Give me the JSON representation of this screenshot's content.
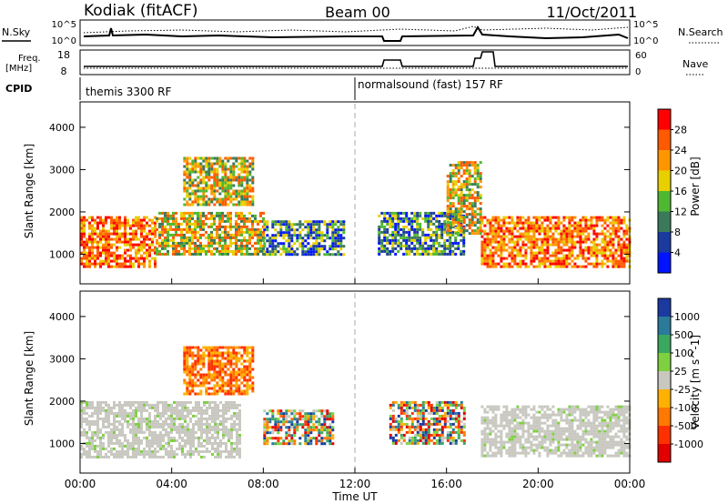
{
  "header": {
    "station": "Kodiak (fitACF)",
    "beam": "Beam 00",
    "date": "11/Oct/2011"
  },
  "panels": {
    "sky_noise": {
      "left_label": "N.Sky",
      "right_label": "N.Search",
      "left_ticks": [
        "10^5",
        "10^0"
      ],
      "right_ticks": [
        "10^5",
        "10^0"
      ]
    },
    "freq": {
      "left_label": "Freq.",
      "left_unit": "[MHz]",
      "left_ticks": [
        "18",
        "8"
      ],
      "right_label": "Nave",
      "right_ticks": [
        "60",
        "0"
      ]
    },
    "cpid": {
      "label": "CPID",
      "segments": [
        {
          "label": "themis 3300 RF",
          "start_hour": 0,
          "end_hour": 12
        },
        {
          "label": "normalsound (fast) 157 RF",
          "start_hour": 12,
          "end_hour": 24
        }
      ]
    }
  },
  "chart_data": [
    {
      "type": "heatmap",
      "name": "power",
      "ylabel": "Slant Range [km]",
      "xlabel": "",
      "xlim": [
        0,
        24
      ],
      "ylim": [
        300,
        4600
      ],
      "y_ticks": [
        1000,
        2000,
        3000,
        4000
      ],
      "colorbar": {
        "label": "Power [dB]",
        "ticks": [
          "28",
          "24",
          "20",
          "16",
          "12",
          "8",
          "4"
        ],
        "colors": [
          "#ff0000",
          "#ff5a00",
          "#ff9600",
          "#e8d000",
          "#4fb830",
          "#3a7a5a",
          "#1a3aa0",
          "#0014ff"
        ]
      },
      "regions": [
        {
          "x": [
            0.0,
            3.3
          ],
          "y": [
            700,
            1900
          ],
          "level": "strong"
        },
        {
          "x": [
            3.3,
            8.0
          ],
          "y": [
            1000,
            2000
          ],
          "level": "medium"
        },
        {
          "x": [
            4.5,
            7.5
          ],
          "y": [
            2200,
            3300
          ],
          "level": "medium"
        },
        {
          "x": [
            8.0,
            11.5
          ],
          "y": [
            1000,
            1800
          ],
          "level": "weak"
        },
        {
          "x": [
            13.0,
            16.8
          ],
          "y": [
            1000,
            2000
          ],
          "level": "weak"
        },
        {
          "x": [
            16.0,
            17.5
          ],
          "y": [
            1500,
            3200
          ],
          "level": "medium"
        },
        {
          "x": [
            17.5,
            24.0
          ],
          "y": [
            700,
            1900
          ],
          "level": "strong"
        }
      ]
    },
    {
      "type": "heatmap",
      "name": "velocity",
      "ylabel": "Slant Range [km]",
      "xlabel": "Time UT",
      "xlim": [
        0,
        24
      ],
      "ylim": [
        300,
        4600
      ],
      "y_ticks": [
        1000,
        2000,
        3000,
        4000
      ],
      "x_ticks": [
        "00:00",
        "04:00",
        "08:00",
        "12:00",
        "16:00",
        "20:00",
        "00:00"
      ],
      "colorbar": {
        "label": "Velocity [m s^-1]",
        "ticks": [
          "1000",
          "500",
          "100",
          "25",
          "-25",
          "-100",
          "-500",
          "-1000"
        ],
        "colors": [
          "#1a3aa0",
          "#2a7a9a",
          "#3aa860",
          "#7ed040",
          "#c8c8c0",
          "#ffb000",
          "#ff7800",
          "#ff3000",
          "#e00000"
        ]
      },
      "regions": [
        {
          "x": [
            0.0,
            7.0
          ],
          "y": [
            700,
            2000
          ],
          "level": "ground"
        },
        {
          "x": [
            4.5,
            7.5
          ],
          "y": [
            2200,
            3300
          ],
          "level": "negative"
        },
        {
          "x": [
            8.0,
            11.0
          ],
          "y": [
            1000,
            1800
          ],
          "level": "mixed"
        },
        {
          "x": [
            13.5,
            16.8
          ],
          "y": [
            1000,
            2000
          ],
          "level": "mixed"
        },
        {
          "x": [
            17.5,
            24.0
          ],
          "y": [
            700,
            1900
          ],
          "level": "ground"
        }
      ]
    }
  ]
}
